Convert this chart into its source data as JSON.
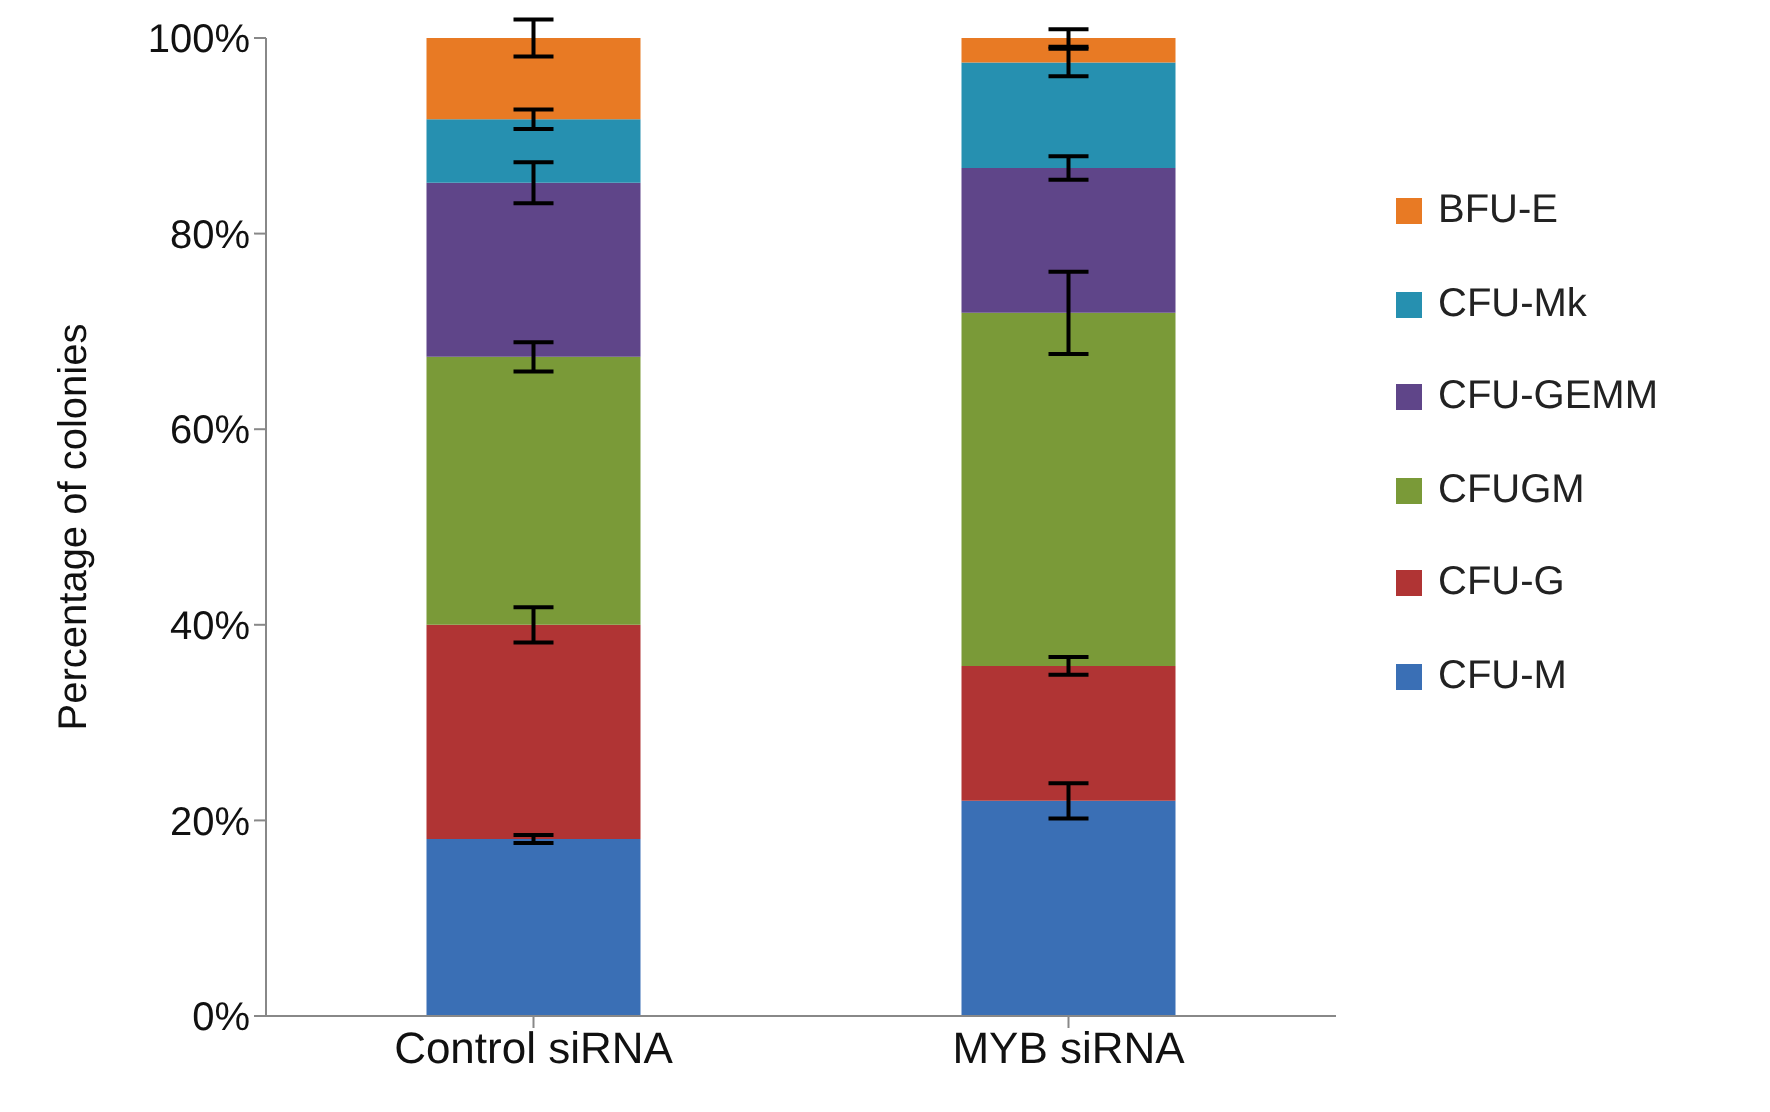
{
  "chart_data": {
    "type": "bar",
    "stacked": true,
    "ylabel": "Percentage of colonies",
    "categories": [
      "Control siRNA",
      "MYB siRNA"
    ],
    "ylim": [
      0,
      100
    ],
    "yticks": [
      {
        "value": 0,
        "label": "0%"
      },
      {
        "value": 20,
        "label": "20%"
      },
      {
        "value": 40,
        "label": "40%"
      },
      {
        "value": 60,
        "label": "60%"
      },
      {
        "value": 80,
        "label": "80%"
      },
      {
        "value": 100,
        "label": "100%"
      }
    ],
    "legend": "right",
    "grid": false,
    "series": [
      {
        "name": "CFU-M",
        "color": "#3a6fb5",
        "values": [
          18.1,
          22.0
        ],
        "errors": [
          0.4,
          1.8
        ]
      },
      {
        "name": "CFU-G",
        "color": "#b03434",
        "values": [
          21.9,
          13.8
        ],
        "errors": [
          1.8,
          0.9
        ]
      },
      {
        "name": "CFUGM",
        "color": "#7a9a38",
        "values": [
          27.4,
          36.1
        ],
        "errors": [
          1.5,
          4.2
        ]
      },
      {
        "name": "CFU-GEMM",
        "color": "#5f4589",
        "values": [
          17.8,
          14.8
        ],
        "errors": [
          2.1,
          1.2
        ]
      },
      {
        "name": "CFU-Mk",
        "color": "#2690b0",
        "values": [
          6.5,
          10.8
        ],
        "errors": [
          1.0,
          1.4
        ]
      },
      {
        "name": "BFU-E",
        "color": "#e87a24",
        "values": [
          8.3,
          2.5
        ],
        "errors": [
          1.9,
          0.9
        ]
      }
    ]
  }
}
